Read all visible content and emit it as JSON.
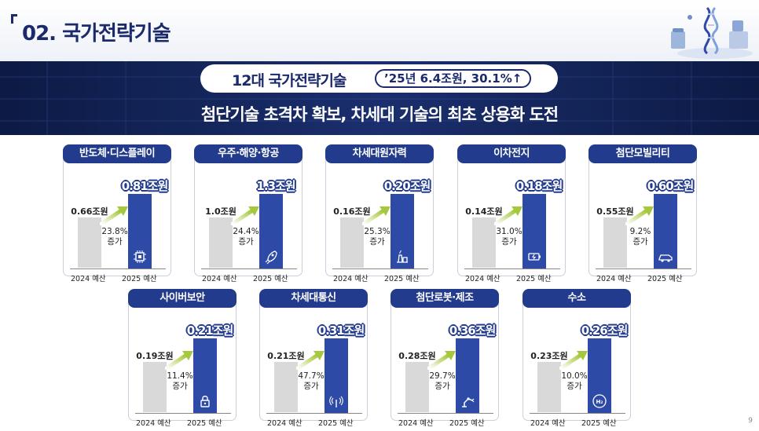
{
  "header": {
    "title": "02. 국가전략기술"
  },
  "banner": {
    "pill_title": "12대 국가전략기술",
    "pill_stat": "’25년 6.4조원, 30.1%↑",
    "subtitle": "첨단기술 초격차 확보, 차세대 기술의 최초 상용화 도전"
  },
  "axis_labels": {
    "y2024": "2024 예산",
    "y2025": "2025 예산"
  },
  "growth_suffix": "증가",
  "colors": {
    "navy": "#233b8c",
    "bar2025": "#2d4aa6",
    "bar2024": "#d9d9d9",
    "arrow": "#a6c83c"
  },
  "cards": [
    {
      "name": "반도체·디스플레이",
      "v2024": "0.66조원",
      "v2025": "0.81조원",
      "growth": "23.8%",
      "icon": "chip-icon"
    },
    {
      "name": "우주·해양·항공",
      "v2024": "1.0조원",
      "v2025": "1.3조원",
      "growth": "24.4%",
      "icon": "rocket-icon"
    },
    {
      "name": "차세대원자력",
      "v2024": "0.16조원",
      "v2025": "0.20조원",
      "growth": "25.3%",
      "icon": "nuclear-plant-icon"
    },
    {
      "name": "이차전지",
      "v2024": "0.14조원",
      "v2025": "0.18조원",
      "growth": "31.0%",
      "icon": "battery-icon"
    },
    {
      "name": "첨단모빌리티",
      "v2024": "0.55조원",
      "v2025": "0.60조원",
      "growth": "9.2%",
      "icon": "car-icon"
    },
    {
      "name": "사이버보안",
      "v2024": "0.19조원",
      "v2025": "0.21조원",
      "growth": "11.4%",
      "icon": "lock-icon"
    },
    {
      "name": "차세대통신",
      "v2024": "0.21조원",
      "v2025": "0.31조원",
      "growth": "47.7%",
      "icon": "antenna-icon"
    },
    {
      "name": "첨단로봇·제조",
      "v2024": "0.28조원",
      "v2025": "0.36조원",
      "growth": "29.7%",
      "icon": "robot-arm-icon"
    },
    {
      "name": "수소",
      "v2024": "0.23조원",
      "v2025": "0.26조원",
      "growth": "10.0%",
      "icon": "hydrogen-icon"
    }
  ],
  "page_number": "9"
}
